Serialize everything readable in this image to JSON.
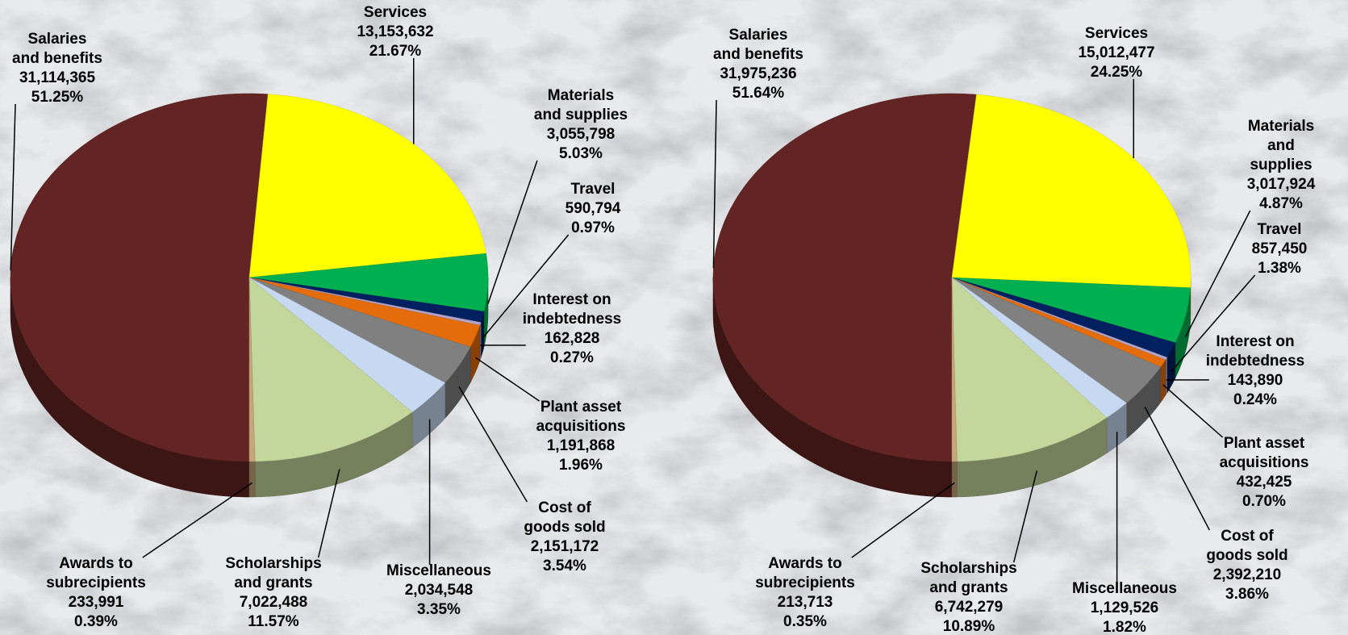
{
  "chart_data": [
    {
      "type": "pie",
      "categories": [
        "Salaries\nand benefits",
        "Services",
        "Materials\nand supplies",
        "Travel",
        "Interest on\nindebtedness",
        "Plant asset\nacquisitions",
        "Cost of\ngoods sold",
        "Miscellaneous",
        "Scholarships\nand grants",
        "Awards to\nsubrecipients"
      ],
      "values": [
        31114365,
        13153632,
        3055798,
        590794,
        162828,
        1191868,
        2151172,
        2034548,
        7022488,
        233991
      ],
      "value_labels": [
        "31,114,365",
        "13,153,632",
        "3,055,798",
        "590,794",
        "162,828",
        "1,191,868",
        "2,151,172",
        "2,034,548",
        "7,022,488",
        "233,991"
      ],
      "percents": [
        51.25,
        21.67,
        5.03,
        0.97,
        0.27,
        1.96,
        3.54,
        3.35,
        11.57,
        0.39
      ],
      "percent_labels": [
        "51.25%",
        "21.67%",
        "5.03%",
        "0.97%",
        "0.27%",
        "1.96%",
        "3.54%",
        "3.35%",
        "11.57%",
        "0.39%"
      ],
      "colors": [
        "#632523",
        "#ffff00",
        "#00b050",
        "#002060",
        "#b3a2c7",
        "#e46c0a",
        "#808080",
        "#c6d9f1",
        "#c3d69b",
        "#c4a67a"
      ]
    },
    {
      "type": "pie",
      "categories": [
        "Salaries\nand benefits",
        "Services",
        "Materials\nand supplies",
        "Travel",
        "Interest on\nindebtedness",
        "Plant asset\nacquisitions",
        "Cost of\ngoods sold",
        "Miscellaneous",
        "Scholarships\nand grants",
        "Awards to\nsubrecipients"
      ],
      "values": [
        31975236,
        15012477,
        3017924,
        857450,
        143890,
        432425,
        2392210,
        1129526,
        6742279,
        213713
      ],
      "value_labels": [
        "31,975,236",
        "15,012,477",
        "3,017,924",
        "857,450",
        "143,890",
        "432,425",
        "2,392,210",
        "1,129,526",
        "6,742,279",
        "213,713"
      ],
      "percents": [
        51.64,
        24.25,
        4.87,
        1.38,
        0.24,
        0.7,
        3.86,
        1.82,
        10.89,
        0.35
      ],
      "percent_labels": [
        "51.64%",
        "24.25%",
        "4.87%",
        "1.38%",
        "0.24%",
        "0.70%",
        "3.86%",
        "1.82%",
        "10.89%",
        "0.35%"
      ],
      "colors": [
        "#632523",
        "#ffff00",
        "#00b050",
        "#002060",
        "#b3a2c7",
        "#e46c0a",
        "#808080",
        "#c6d9f1",
        "#c3d69b",
        "#c4a67a"
      ]
    }
  ]
}
